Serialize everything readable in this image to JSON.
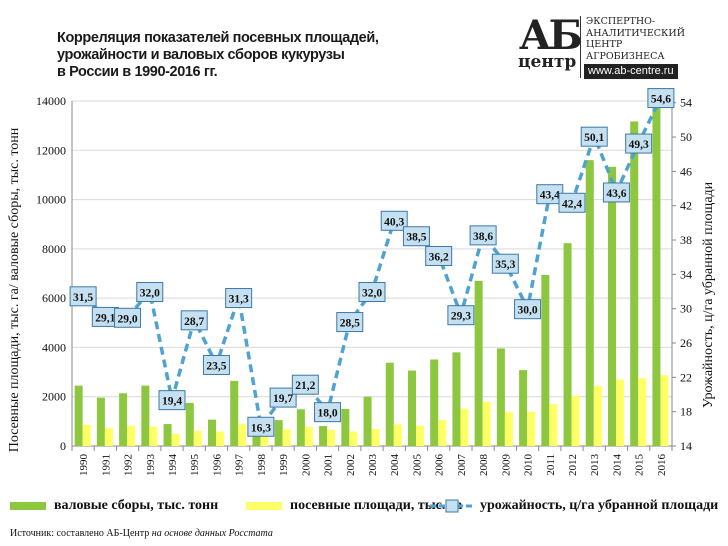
{
  "header": {
    "title_lines": [
      "Корреляция показателей посевных площадей,",
      "урожайности и валовых сборов кукурузы",
      "в России в 1990-2016 гг."
    ]
  },
  "logo": {
    "big": "АБ",
    "small": "центр",
    "lines": [
      "ЭКСПЕРТНО-",
      "АНАЛИТИЧЕСКИЙ",
      "ЦЕНТР",
      "АГРОБИЗНЕСА"
    ],
    "url": "www.ab-centre.ru"
  },
  "source": {
    "prefix": "Источник: составлено АБ-Центр",
    "italic": " на основе данных Росстата"
  },
  "chart_data": {
    "type": "bar+line",
    "categories": [
      "1990",
      "1991",
      "1992",
      "1993",
      "1994",
      "1995",
      "1996",
      "1997",
      "1998",
      "1999",
      "2000",
      "2001",
      "2002",
      "2003",
      "2004",
      "2005",
      "2006",
      "2007",
      "2008",
      "2009",
      "2010",
      "2011",
      "2012",
      "2013",
      "2014",
      "2015",
      "2016"
    ],
    "series": [
      {
        "name": "валовые сборы, тыс. тонн",
        "type": "bar",
        "axis": "left",
        "color": "#8dc63f",
        "values": [
          2450,
          1960,
          2140,
          2450,
          890,
          1750,
          1070,
          2640,
          800,
          1050,
          1490,
          810,
          1500,
          2000,
          3380,
          3060,
          3510,
          3800,
          6700,
          3960,
          3080,
          6940,
          8230,
          11600,
          11330,
          13170,
          13900
        ]
      },
      {
        "name": "посевные площади, тыс. га",
        "type": "bar",
        "axis": "left",
        "color": "#ffff66",
        "values": [
          860,
          720,
          820,
          780,
          500,
          620,
          590,
          900,
          480,
          680,
          780,
          660,
          590,
          690,
          880,
          820,
          1050,
          1510,
          1790,
          1370,
          1390,
          1700,
          2040,
          2440,
          2700,
          2750,
          2870
        ]
      },
      {
        "name": "урожайность, ц/га убранной площади",
        "type": "line",
        "axis": "right",
        "color": "#4fa3d1",
        "values": [
          31.5,
          29.1,
          29.0,
          32.0,
          19.4,
          28.7,
          23.5,
          31.3,
          16.3,
          19.7,
          21.2,
          18.0,
          28.5,
          32.0,
          40.3,
          38.5,
          36.2,
          29.3,
          38.6,
          35.3,
          30.0,
          43.4,
          42.4,
          50.1,
          43.6,
          49.3,
          54.6
        ],
        "labels": [
          "31,5",
          "29,1",
          "29,0",
          "32,0",
          "19,4",
          "28,7",
          "23,5",
          "31,3",
          "16,3",
          "19,7",
          "21,2",
          "18,0",
          "28,5",
          "32,0",
          "40,3",
          "38,5",
          "36,2",
          "29,3",
          "38,6",
          "35,3",
          "30,0",
          "43,4",
          "42,4",
          "50,1",
          "43,6",
          "49,3",
          "54,6"
        ]
      }
    ],
    "ylabel": "Посевные площади, тыс. га/ валовые сборы, тыс. тонн",
    "y2label": "Урожайность, ц/га убранной площади",
    "ylim": [
      0,
      14000
    ],
    "yticks": [
      "0",
      "2000",
      "4000",
      "6000",
      "8000",
      "10000",
      "12000",
      "14000"
    ],
    "y2lim": [
      14,
      54.2
    ],
    "y2ticks": [
      "14",
      "18",
      "22",
      "26",
      "30",
      "34",
      "38",
      "42",
      "46",
      "50",
      "54"
    ],
    "grid": true,
    "legend": "bottom"
  }
}
